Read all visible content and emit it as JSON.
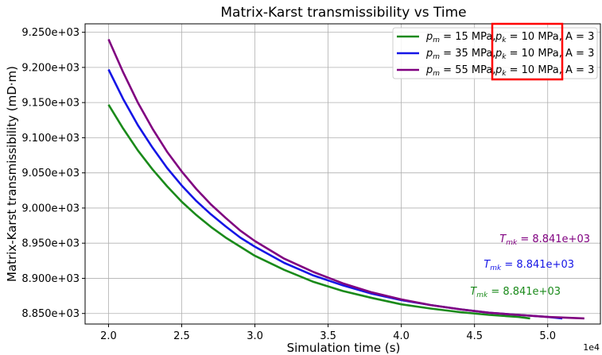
{
  "chart_data": {
    "type": "line",
    "title": "Matrix-Karst transmissibility vs Time",
    "xlabel": "Simulation time (s)",
    "ylabel": "Matrix-Karst transmissibility (mD·m)",
    "x_offset_label": "1e4",
    "xlim": [
      18400,
      53600
    ],
    "ylim": [
      8835,
      9262
    ],
    "xticks": [
      20000,
      25000,
      30000,
      35000,
      40000,
      45000,
      50000
    ],
    "xtick_labels": [
      "2.0",
      "2.5",
      "3.0",
      "3.5",
      "4.0",
      "4.5",
      "5.0"
    ],
    "yticks": [
      8850,
      8900,
      8950,
      9000,
      9050,
      9100,
      9150,
      9200,
      9250
    ],
    "ytick_labels": [
      "8.850e+03",
      "8.900e+03",
      "8.950e+03",
      "9.000e+03",
      "9.050e+03",
      "9.100e+03",
      "9.150e+03",
      "9.200e+03",
      "9.250e+03"
    ],
    "grid": true,
    "legend_position": "top-right",
    "series": [
      {
        "name": "p_m = 15 MPa, p_k = 10 MPa, A = 3",
        "legend_pm": "15",
        "color": "#1a8a1a",
        "x": [
          20000,
          21000,
          22000,
          23000,
          24000,
          25000,
          26000,
          27000,
          28000,
          29000,
          30000,
          32000,
          34000,
          36000,
          38000,
          40000,
          42000,
          44000,
          46000,
          48000,
          48800
        ],
        "y": [
          9147,
          9113,
          9082,
          9055,
          9031,
          9009,
          8990,
          8973,
          8958,
          8945,
          8932,
          8912,
          8895,
          8882,
          8872,
          8863,
          8857,
          8852,
          8848,
          8845,
          8843
        ]
      },
      {
        "name": "p_m = 35 MPa, p_k = 10 MPa, A = 3",
        "legend_pm": "35",
        "color": "#1515e6",
        "x": [
          20000,
          21000,
          22000,
          23000,
          24000,
          25000,
          26000,
          27000,
          28000,
          29000,
          30000,
          32000,
          34000,
          36000,
          38000,
          40000,
          42000,
          44000,
          46000,
          48000,
          50000,
          51000
        ],
        "y": [
          9197,
          9155,
          9118,
          9086,
          9057,
          9032,
          9010,
          8991,
          8974,
          8958,
          8945,
          8922,
          8904,
          8890,
          8878,
          8869,
          8862,
          8856,
          8851,
          8848,
          8845,
          8843
        ]
      },
      {
        "name": "p_m = 55 MPa, p_k = 10 MPa, A = 3",
        "legend_pm": "55",
        "color": "#800080",
        "x": [
          20000,
          21000,
          22000,
          23000,
          24000,
          25000,
          26000,
          27000,
          28000,
          29000,
          30000,
          32000,
          34000,
          36000,
          38000,
          40000,
          42000,
          44000,
          46000,
          48000,
          50000,
          52500
        ],
        "y": [
          9240,
          9193,
          9150,
          9113,
          9080,
          9052,
          9027,
          9005,
          8986,
          8968,
          8953,
          8928,
          8909,
          8893,
          8880,
          8870,
          8862,
          8856,
          8851,
          8848,
          8845,
          8843
        ]
      }
    ],
    "legend_fixed_text": {
      "pm_unit": "MPa,",
      "pk_value": "10",
      "pk_unit": "MPa,",
      "a_text": "A = 3"
    },
    "annotations": [
      {
        "value_text": "= 8.841e+03",
        "color": "#800080"
      },
      {
        "value_text": "= 8.841e+03",
        "color": "#1515e6"
      },
      {
        "value_text": "= 8.841e+03",
        "color": "#1a8a1a"
      }
    ],
    "highlight_box_color": "#ff0000"
  }
}
